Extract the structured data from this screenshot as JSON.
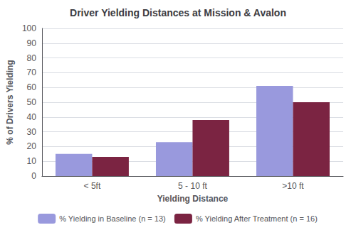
{
  "chart_data": {
    "type": "bar",
    "title": "Driver Yielding Distances at Mission & Avalon",
    "xlabel": "Yielding Distance",
    "ylabel": "% of Drivers Yielding",
    "categories": [
      "< 5ft",
      "5 - 10 ft",
      ">10 ft"
    ],
    "series": [
      {
        "name": "% Yielding in Baseline (n = 13)",
        "color": "#9999dd",
        "values": [
          15,
          23,
          61
        ]
      },
      {
        "name": "% Yielding After Treatment (n = 16)",
        "color": "#7b2442",
        "values": [
          13,
          38,
          50
        ]
      }
    ],
    "ylim": [
      0,
      100
    ],
    "yticks": [
      0,
      10,
      20,
      30,
      40,
      50,
      60,
      70,
      80,
      90,
      100
    ],
    "grid": true,
    "legend": "bottom"
  }
}
